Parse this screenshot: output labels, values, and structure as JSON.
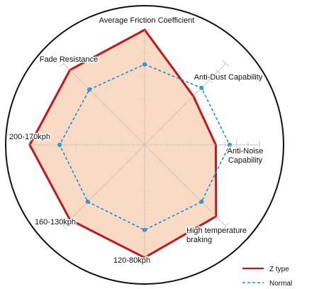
{
  "chart_data": {
    "type": "radar",
    "axes": [
      "Average Friction Coefficient",
      "Anti-Dust Capability",
      "Anti-Noise Capability",
      "High temperature braking",
      "120-80kph",
      "160-130kph",
      "200-170kph",
      "Fade Resistance"
    ],
    "axis_label_lines": [
      [
        "Average Friction Coefficient"
      ],
      [
        "Anti-Dust Capability"
      ],
      [
        "Anti-Noise",
        "Capability"
      ],
      [
        "High temperature",
        "braking"
      ],
      [
        "120-80kph"
      ],
      [
        "160-130kph"
      ],
      [
        "200-170kph"
      ],
      [
        "Fade Resistance"
      ]
    ],
    "rmax": 5,
    "rings": 5,
    "series": [
      {
        "name": "Z type",
        "values": [
          5.0,
          3.0,
          3.1,
          4.4,
          4.9,
          4.6,
          5.0,
          4.6
        ],
        "color": "#c4161c",
        "fill": "#f7cfb3",
        "style": "solid"
      },
      {
        "name": "Normal",
        "values": [
          3.5,
          3.5,
          3.7,
          3.5,
          3.7,
          3.5,
          3.7,
          3.4
        ],
        "color": "#1a8fd6",
        "style": "dashed"
      }
    ],
    "grid": true,
    "legend": "bottom-right"
  }
}
